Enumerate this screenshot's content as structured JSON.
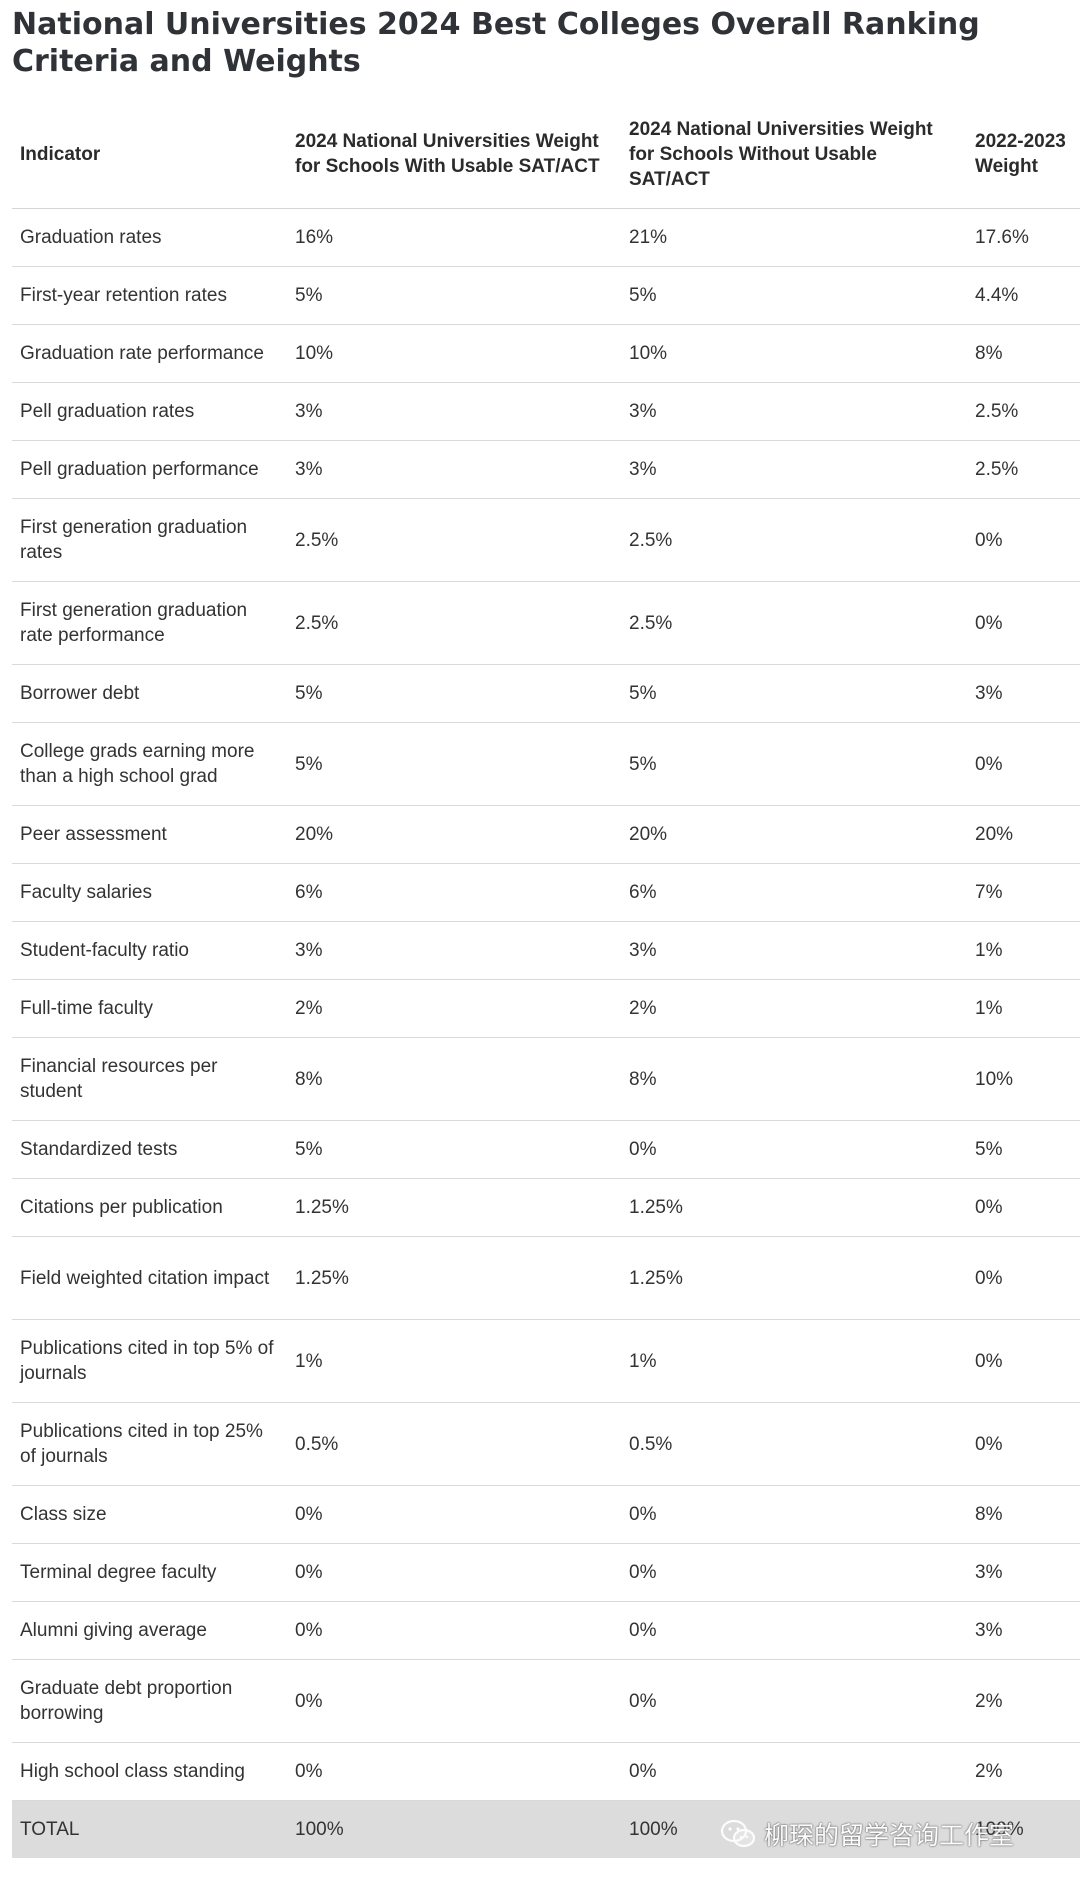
{
  "title": "National Universities 2024 Best Colleges Overall Ranking Criteria and Weights",
  "table": {
    "headers": [
      "Indicator",
      "2024 National Universities Weight for Schools With Usable SAT/ACT",
      "2024 National Universities Weight for Schools Without Usable SAT/ACT",
      "2022-2023 Weight"
    ],
    "rows": [
      [
        "Graduation rates",
        "16%",
        "21%",
        "17.6%"
      ],
      [
        "First-year retention rates",
        "5%",
        "5%",
        "4.4%"
      ],
      [
        "Graduation rate performance",
        "10%",
        "10%",
        "8%"
      ],
      [
        "Pell graduation rates",
        "3%",
        "3%",
        "2.5%"
      ],
      [
        "Pell graduation performance",
        "3%",
        "3%",
        "2.5%"
      ],
      [
        "First generation graduation rates",
        "2.5%",
        "2.5%",
        "0%"
      ],
      [
        "First generation graduation rate performance",
        "2.5%",
        "2.5%",
        "0%"
      ],
      [
        "Borrower debt",
        "5%",
        "5%",
        "3%"
      ],
      [
        "College grads earning more than a high school grad",
        "5%",
        "5%",
        "0%"
      ],
      [
        "Peer assessment",
        "20%",
        "20%",
        "20%"
      ],
      [
        "Faculty salaries",
        "6%",
        "6%",
        "7%"
      ],
      [
        "Student-faculty ratio",
        "3%",
        "3%",
        "1%"
      ],
      [
        "Full-time faculty",
        "2%",
        "2%",
        "1%"
      ],
      [
        "Financial resources per student",
        "8%",
        "8%",
        "10%"
      ],
      [
        "Standardized tests",
        "5%",
        "0%",
        "5%"
      ],
      [
        "Citations per publication",
        "1.25%",
        "1.25%",
        "0%"
      ],
      [
        "Field weighted citation impact",
        "1.25%",
        "1.25%",
        "0%"
      ],
      [
        "Publications cited in top 5% of journals",
        "1%",
        "1%",
        "0%"
      ],
      [
        "Publications cited in top 25% of journals",
        "0.5%",
        "0.5%",
        "0%"
      ],
      [
        "Class size",
        "0%",
        "0%",
        "8%"
      ],
      [
        "Terminal degree faculty",
        "0%",
        "0%",
        "3%"
      ],
      [
        "Alumni giving average",
        "0%",
        "0%",
        "3%"
      ],
      [
        "Graduate debt proportion borrowing",
        "0%",
        "0%",
        "2%"
      ],
      [
        "High school class standing",
        "0%",
        "0%",
        "2%"
      ]
    ],
    "total": [
      "TOTAL",
      "100%",
      "100%",
      "100%"
    ],
    "total_row_color": "#dcdcdc"
  },
  "watermark": {
    "icon": "wechat-icon",
    "text": "柳琛的留学咨询工作室"
  }
}
